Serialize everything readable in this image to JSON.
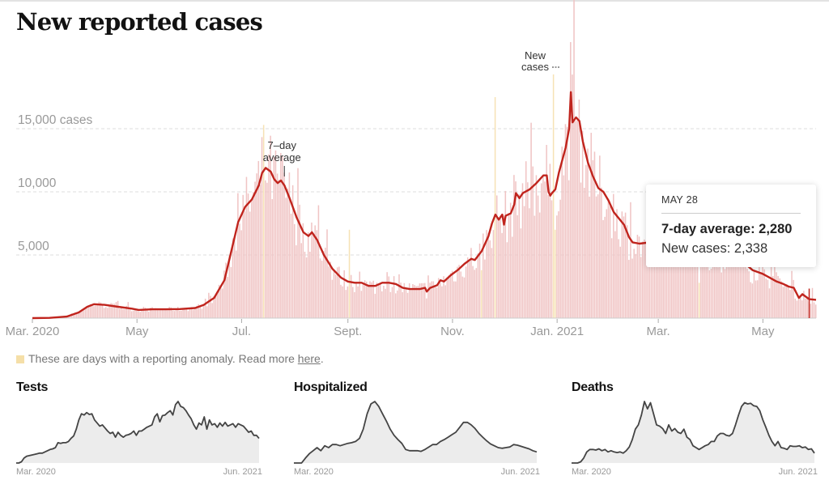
{
  "title": "New reported cases",
  "tooltip": {
    "date": "MAY 28",
    "avg_label": "7-day average: 2,280",
    "new_label": "New cases: 2,338"
  },
  "note": {
    "text": "These are days with a reporting anomaly. Read more ",
    "link": "here",
    "end": "."
  },
  "colors": {
    "bar": "#f0c4c4",
    "anomaly_bar": "#f6e2b5",
    "line": "#c0241d",
    "small_line": "#444444",
    "small_fill": "#ececec",
    "grid": "#dddddd"
  },
  "chart_data": {
    "type": "bar",
    "title": "New reported cases",
    "xlabel": "",
    "ylabel": "cases",
    "ylim": [
      0,
      19500
    ],
    "grid": true,
    "y_ticks": [
      {
        "value": 15000,
        "label": "15,000 cases"
      },
      {
        "value": 10000,
        "label": "10,000"
      },
      {
        "value": 5000,
        "label": "5,000"
      }
    ],
    "x_range_days": [
      0,
      457
    ],
    "x_start_date": "2020-03-01",
    "x_ticks": [
      {
        "day": 0,
        "label": "Mar. 2020"
      },
      {
        "day": 61,
        "label": "May"
      },
      {
        "day": 122,
        "label": "Jul."
      },
      {
        "day": 184,
        "label": "Sept."
      },
      {
        "day": 245,
        "label": "Nov."
      },
      {
        "day": 306,
        "label": "Jan. 2021"
      },
      {
        "day": 365,
        "label": "Mar."
      },
      {
        "day": 426,
        "label": "May"
      }
    ],
    "annotations": [
      {
        "text": [
          "7–day",
          "average"
        ],
        "day": 146,
        "value": 12000
      },
      {
        "text": [
          "New",
          "cases"
        ],
        "day": 306,
        "value": 19000
      }
    ],
    "series": [
      {
        "name": "7-day average",
        "kind": "line",
        "points": [
          [
            0,
            0
          ],
          [
            10,
            20
          ],
          [
            20,
            120
          ],
          [
            27,
            450
          ],
          [
            32,
            900
          ],
          [
            36,
            1100
          ],
          [
            42,
            1050
          ],
          [
            50,
            900
          ],
          [
            58,
            750
          ],
          [
            62,
            650
          ],
          [
            70,
            700
          ],
          [
            78,
            700
          ],
          [
            86,
            720
          ],
          [
            95,
            800
          ],
          [
            100,
            1050
          ],
          [
            106,
            1600
          ],
          [
            112,
            3000
          ],
          [
            116,
            5300
          ],
          [
            120,
            7600
          ],
          [
            124,
            8800
          ],
          [
            128,
            9400
          ],
          [
            132,
            10500
          ],
          [
            134,
            11500
          ],
          [
            136,
            11900
          ],
          [
            139,
            11600
          ],
          [
            141,
            11000
          ],
          [
            143,
            10700
          ],
          [
            145,
            10900
          ],
          [
            147,
            10500
          ],
          [
            150,
            9500
          ],
          [
            154,
            8000
          ],
          [
            158,
            6800
          ],
          [
            161,
            6500
          ],
          [
            163,
            6800
          ],
          [
            166,
            6200
          ],
          [
            170,
            5000
          ],
          [
            175,
            3900
          ],
          [
            180,
            3200
          ],
          [
            184,
            2900
          ],
          [
            188,
            2800
          ],
          [
            192,
            2800
          ],
          [
            196,
            2550
          ],
          [
            200,
            2550
          ],
          [
            204,
            2800
          ],
          [
            208,
            2800
          ],
          [
            212,
            2700
          ],
          [
            216,
            2400
          ],
          [
            220,
            2300
          ],
          [
            226,
            2300
          ],
          [
            229,
            2400
          ],
          [
            230,
            2100
          ],
          [
            232,
            2400
          ],
          [
            236,
            2600
          ],
          [
            238,
            3000
          ],
          [
            240,
            2900
          ],
          [
            244,
            3400
          ],
          [
            248,
            3800
          ],
          [
            252,
            4300
          ],
          [
            256,
            4700
          ],
          [
            258,
            4600
          ],
          [
            262,
            5300
          ],
          [
            266,
            6500
          ],
          [
            268,
            7500
          ],
          [
            270,
            8200
          ],
          [
            272,
            7800
          ],
          [
            274,
            8200
          ],
          [
            275,
            7400
          ],
          [
            276,
            8100
          ],
          [
            279,
            8300
          ],
          [
            281,
            9000
          ],
          [
            282,
            9900
          ],
          [
            284,
            9500
          ],
          [
            286,
            9900
          ],
          [
            290,
            10200
          ],
          [
            294,
            10700
          ],
          [
            298,
            11300
          ],
          [
            300,
            11300
          ],
          [
            301,
            10000
          ],
          [
            302,
            9700
          ],
          [
            303,
            9900
          ],
          [
            305,
            10200
          ],
          [
            307,
            11500
          ],
          [
            311,
            13500
          ],
          [
            313,
            15000
          ],
          [
            314,
            17900
          ],
          [
            315,
            15500
          ],
          [
            317,
            15900
          ],
          [
            319,
            15600
          ],
          [
            321,
            14000
          ],
          [
            324,
            12300
          ],
          [
            327,
            11200
          ],
          [
            330,
            10300
          ],
          [
            333,
            10000
          ],
          [
            336,
            9300
          ],
          [
            339,
            8400
          ],
          [
            342,
            7900
          ],
          [
            345,
            7400
          ],
          [
            348,
            6400
          ],
          [
            350,
            6000
          ],
          [
            354,
            5900
          ],
          [
            360,
            6000
          ],
          [
            366,
            5800
          ],
          [
            372,
            5600
          ],
          [
            378,
            5500
          ],
          [
            384,
            5400
          ],
          [
            390,
            5300
          ],
          [
            396,
            5100
          ],
          [
            402,
            4900
          ],
          [
            408,
            4700
          ],
          [
            414,
            4500
          ],
          [
            420,
            3800
          ],
          [
            426,
            3500
          ],
          [
            430,
            3200
          ],
          [
            434,
            2900
          ],
          [
            438,
            2700
          ],
          [
            441,
            2500
          ],
          [
            444,
            2400
          ],
          [
            447,
            1600
          ],
          [
            449,
            1900
          ],
          [
            451,
            1700
          ],
          [
            453,
            1500
          ],
          [
            457,
            1450
          ]
        ]
      },
      {
        "name": "New cases",
        "kind": "bar",
        "noise_seed": 7,
        "note": "Daily bars follow the 7-day average with day-to-day variation"
      },
      {
        "name": "Reporting anomaly days",
        "kind": "bar",
        "days": [
          {
            "day": 135,
            "value": 15300
          },
          {
            "day": 185,
            "value": 7000
          },
          {
            "day": 262,
            "value": 3800
          },
          {
            "day": 270,
            "value": 17500
          },
          {
            "day": 304,
            "value": 19300
          },
          {
            "day": 305,
            "value": 7000
          },
          {
            "day": 389,
            "value": 2800
          }
        ]
      }
    ],
    "small_multiples": [
      {
        "title": "Tests",
        "x_labels": [
          "Mar. 2020",
          "Jun. 2021"
        ],
        "values": [
          0,
          0,
          2,
          8,
          11,
          12,
          13,
          14,
          15,
          16,
          16,
          18,
          20,
          22,
          23,
          25,
          33,
          32,
          33,
          33,
          35,
          40,
          44,
          55,
          70,
          80,
          78,
          82,
          79,
          80,
          70,
          65,
          60,
          62,
          57,
          52,
          48,
          50,
          42,
          50,
          45,
          42,
          45,
          46,
          48,
          52,
          45,
          52,
          52,
          55,
          58,
          60,
          62,
          75,
          80,
          67,
          77,
          78,
          82,
          85,
          78,
          95,
          100,
          92,
          90,
          85,
          78,
          72,
          62,
          55,
          65,
          62,
          75,
          55,
          70,
          62,
          64,
          58,
          65,
          60,
          66,
          60,
          62,
          64,
          58,
          64,
          62,
          60,
          55,
          50,
          52,
          45,
          45,
          40
        ]
      },
      {
        "title": "Hospitalized",
        "x_labels": [
          "Mar. 2020",
          "Jun. 2021"
        ],
        "values": [
          0,
          0,
          0,
          8,
          15,
          20,
          25,
          20,
          28,
          25,
          30,
          30,
          28,
          30,
          32,
          33,
          35,
          40,
          55,
          80,
          96,
          100,
          92,
          80,
          68,
          55,
          45,
          38,
          32,
          22,
          20,
          20,
          20,
          19,
          22,
          26,
          30,
          30,
          35,
          38,
          42,
          46,
          50,
          58,
          66,
          66,
          62,
          56,
          48,
          42,
          36,
          31,
          28,
          25,
          24,
          25,
          26,
          30,
          29,
          27,
          25,
          23,
          20,
          18
        ]
      },
      {
        "title": "Deaths",
        "x_labels": [
          "Mar. 2020",
          "Jun. 2021"
        ],
        "values": [
          0,
          0,
          0,
          2,
          8,
          18,
          22,
          22,
          21,
          23,
          20,
          22,
          18,
          20,
          18,
          17,
          18,
          16,
          20,
          26,
          38,
          55,
          62,
          78,
          100,
          88,
          98,
          80,
          62,
          60,
          56,
          48,
          62,
          52,
          56,
          50,
          48,
          55,
          42,
          38,
          28,
          25,
          22,
          25,
          28,
          30,
          35,
          35,
          44,
          48,
          48,
          45,
          44,
          48,
          62,
          78,
          92,
          98,
          96,
          97,
          93,
          92,
          85,
          70,
          58,
          45,
          35,
          28,
          35,
          25,
          24,
          22,
          28,
          27,
          27,
          28,
          25,
          26,
          22,
          23,
          16
        ]
      }
    ]
  }
}
